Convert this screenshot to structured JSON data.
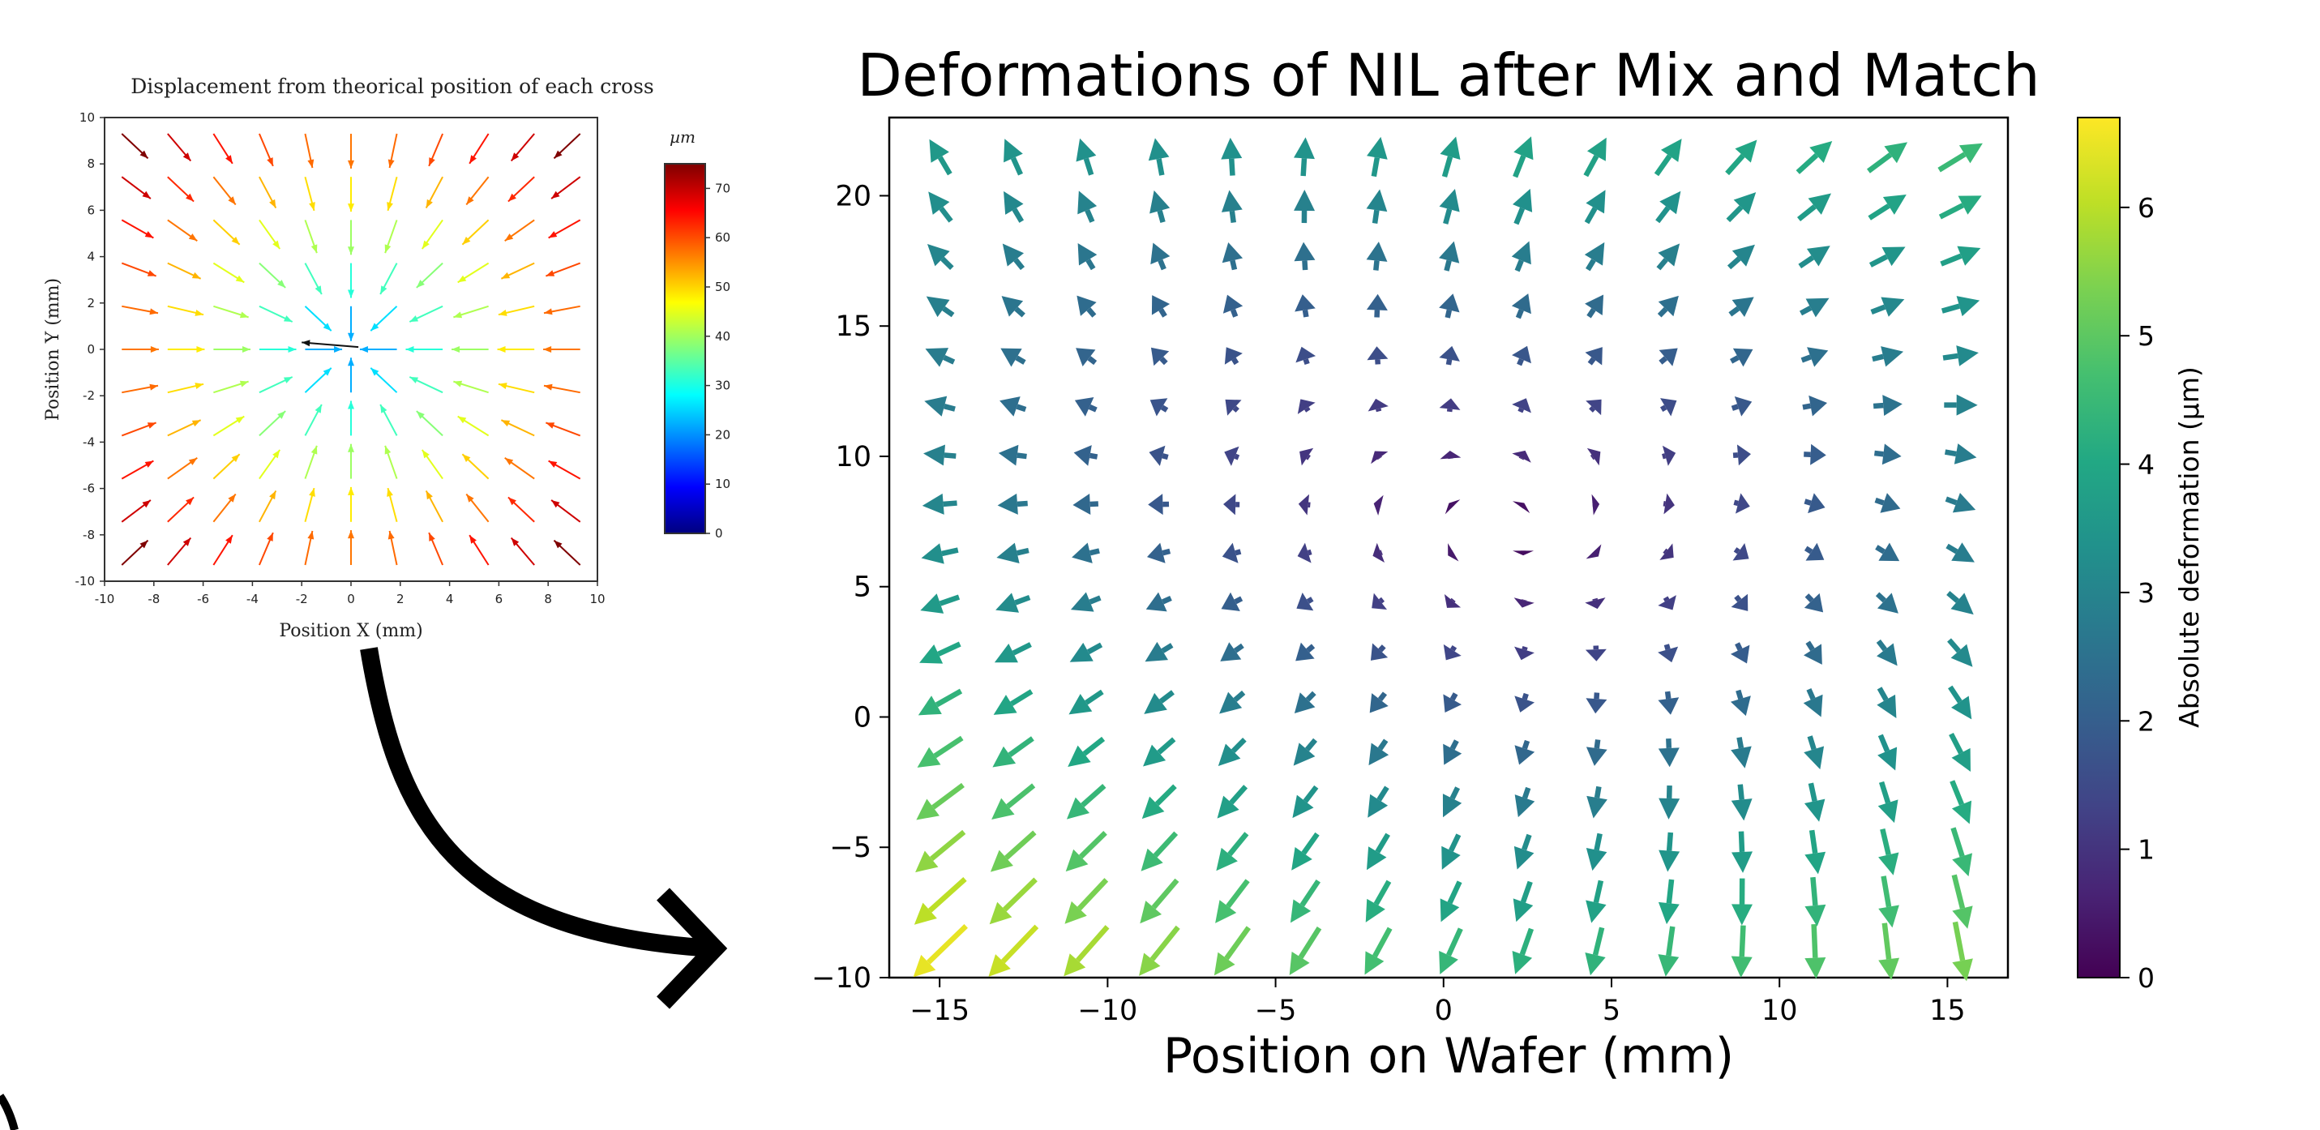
{
  "chart_data": [
    {
      "type": "quiver",
      "title": "Displacement from theorical position of each cross",
      "xlabel": "Position X (mm)",
      "ylabel": "Position Y (mm)",
      "xlim": [
        -10,
        10
      ],
      "ylim": [
        -10,
        10
      ],
      "xticks": [
        "-10",
        "-8",
        "-6",
        "-4",
        "-2",
        "0",
        "2",
        "4",
        "6",
        "8",
        "10"
      ],
      "yticks": [
        "-10",
        "-8",
        "-6",
        "-4",
        "-2",
        "0",
        "2",
        "4",
        "6",
        "8",
        "10"
      ],
      "colormap": "jet",
      "colorbar": {
        "label": "µm",
        "min": 0,
        "max": 75,
        "ticks": [
          "0",
          "10",
          "20",
          "30",
          "40",
          "50",
          "60",
          "70"
        ]
      },
      "field": {
        "pattern": "radial toward center",
        "magnitude_at_corner": 75,
        "magnitude_at_center": 0
      },
      "grid": false
    },
    {
      "type": "quiver",
      "title": "Deformations of NIL after Mix and Match",
      "xlabel": "Position on Wafer (mm)",
      "ylabel": "",
      "xlim": [
        -16.5,
        16.8
      ],
      "ylim": [
        -10,
        23
      ],
      "xticks": [
        "−15",
        "−10",
        "−5",
        "0",
        "5",
        "10",
        "15"
      ],
      "yticks": [
        "−10",
        "−5",
        "0",
        "5",
        "10",
        "15",
        "20"
      ],
      "colormap": "viridis",
      "colorbar": {
        "label": "Absolute deformation (µm)",
        "min": 0,
        "max": 6.7,
        "ticks": [
          "0",
          "1",
          "2",
          "3",
          "4",
          "5",
          "6"
        ]
      },
      "field": {
        "x_range": [
          -15,
          15.4
        ],
        "y_range": [
          -9,
          21.5
        ],
        "nx": 15,
        "ny": 17,
        "min_deformation_near": [
          2,
          7
        ],
        "max_deformation_corners": "bottom-left and top-right",
        "max_magnitude": 6.7
      },
      "grid": false
    }
  ]
}
